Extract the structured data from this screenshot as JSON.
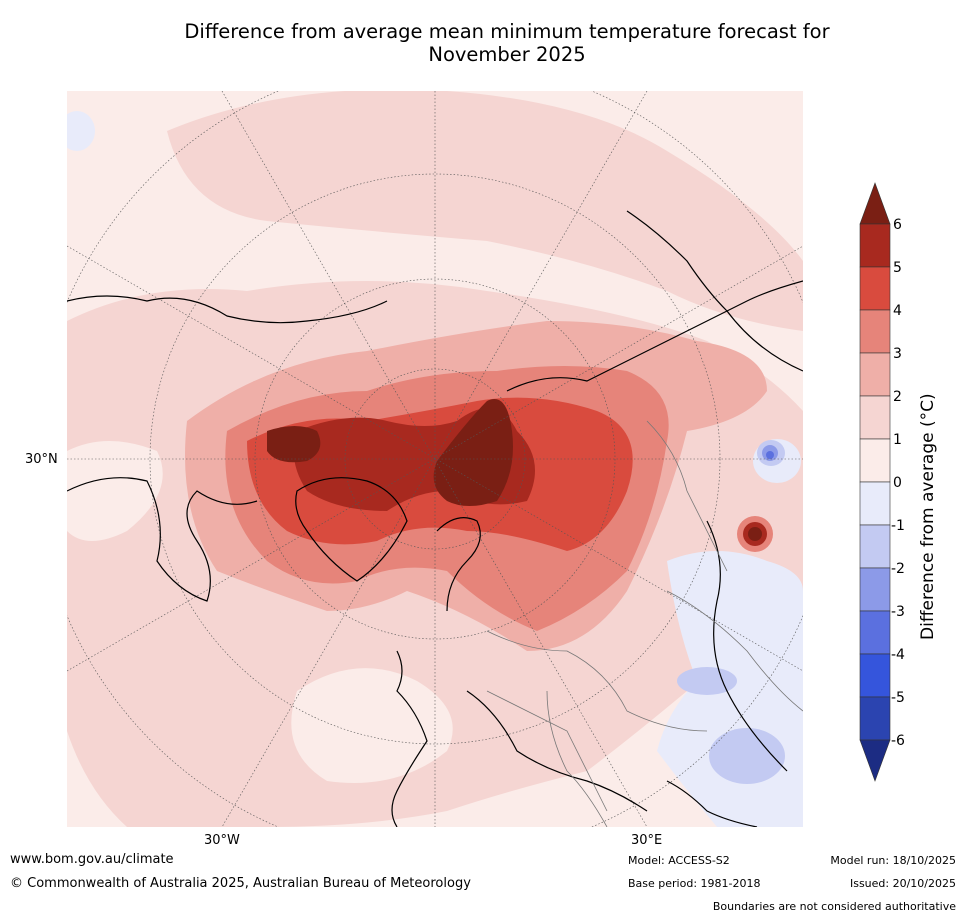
{
  "title_line1": "Difference from average mean minimum temperature forecast for",
  "title_line2": "November 2025",
  "map": {
    "labels": {
      "lat_30n": "30°N",
      "lon_30w": "30°W",
      "lon_30e": "30°E"
    }
  },
  "colorbar": {
    "title": "Difference from average (°C)",
    "ticks": [
      "6",
      "5",
      "4",
      "3",
      "2",
      "1",
      "0",
      "-1",
      "-2",
      "-3",
      "-4",
      "-5",
      "-6"
    ],
    "colors": {
      "above_6": "#7a1f14",
      "5_6": "#a8291f",
      "4_5": "#d94b3e",
      "3_4": "#e6847a",
      "2_3": "#efafa8",
      "1_2": "#f5d5d2",
      "0_1": "#fbece9",
      "m1_0": "#e8ebfa",
      "m2_m1": "#c3caf2",
      "m3_m2": "#8c9ae8",
      "m4_m3": "#5b70df",
      "m5_m4": "#3555dc",
      "m6_m5": "#2b44b0",
      "below_m6": "#1c2c83"
    }
  },
  "footer": {
    "url": "www.bom.gov.au/climate",
    "copyright": "© Commonwealth of Australia 2025, Australian Bureau of Meteorology",
    "model": "Model: ACCESS-S2",
    "base_period": "Base period: 1981-2018",
    "model_run": "Model run: 18/10/2025",
    "issued": "Issued: 20/10/2025",
    "disclaimer": "Boundaries are not considered authoritative"
  }
}
